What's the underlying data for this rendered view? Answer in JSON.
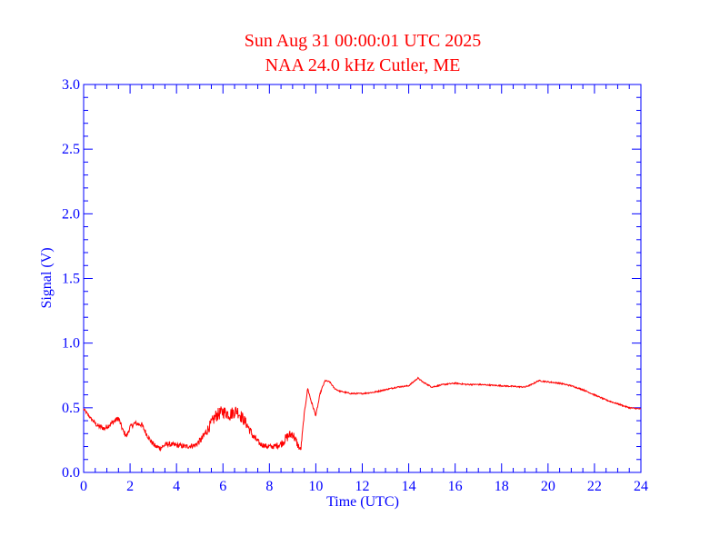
{
  "chart_data": {
    "type": "line",
    "title": "Sun Aug 31 00:00:01 UTC 2025",
    "subtitle": "NAA 24.0 kHz Cutler, ME",
    "xlabel": "Time (UTC)",
    "ylabel": "Signal (V)",
    "xlim": [
      0,
      24
    ],
    "ylim": [
      0,
      3.0
    ],
    "x_ticks": [
      0,
      2,
      4,
      6,
      8,
      10,
      12,
      14,
      16,
      18,
      20,
      22,
      24
    ],
    "x_tick_labels": [
      "0",
      "2",
      "4",
      "6",
      "8",
      "10",
      "12",
      "14",
      "16",
      "18",
      "20",
      "22",
      "24"
    ],
    "y_ticks": [
      0,
      0.5,
      1.0,
      1.5,
      2.0,
      2.5,
      3.0
    ],
    "y_tick_labels": [
      "0.0",
      "0.5",
      "1.0",
      "1.5",
      "2.0",
      "2.5",
      "3.0"
    ],
    "grid": false,
    "colors": {
      "title": "#ff0000",
      "axes": "#0000ff",
      "series": "#ff0000"
    },
    "series": [
      {
        "x": [
          0,
          0.3,
          0.6,
          0.9,
          1.2,
          1.5,
          1.7,
          1.85,
          2.0,
          2.2,
          2.5,
          2.7,
          2.9,
          3.1,
          3.3,
          3.6,
          4.0,
          4.4,
          4.8,
          5.1,
          5.4,
          5.7,
          6.0,
          6.3,
          6.6,
          6.8,
          7.0,
          7.3,
          7.6,
          7.9,
          8.2,
          8.5,
          8.8,
          9.0,
          9.2,
          9.35,
          9.5,
          9.65,
          9.8,
          10.0,
          10.2,
          10.4,
          10.6,
          10.8,
          11.0,
          11.5,
          12.0,
          12.5,
          13.0,
          13.5,
          14.0,
          14.2,
          14.4,
          14.6,
          15.0,
          15.5,
          16.0,
          16.5,
          17.0,
          18.0,
          19.0,
          19.3,
          19.6,
          20.0,
          20.5,
          21.0,
          21.5,
          22.0,
          22.5,
          23.0,
          23.5,
          24.0
        ],
        "y": [
          0.49,
          0.42,
          0.36,
          0.34,
          0.38,
          0.42,
          0.32,
          0.28,
          0.35,
          0.38,
          0.37,
          0.3,
          0.24,
          0.2,
          0.19,
          0.22,
          0.21,
          0.2,
          0.21,
          0.26,
          0.35,
          0.44,
          0.47,
          0.45,
          0.48,
          0.43,
          0.38,
          0.28,
          0.22,
          0.2,
          0.2,
          0.22,
          0.28,
          0.3,
          0.22,
          0.17,
          0.45,
          0.65,
          0.55,
          0.44,
          0.62,
          0.71,
          0.7,
          0.65,
          0.63,
          0.61,
          0.61,
          0.62,
          0.64,
          0.66,
          0.67,
          0.7,
          0.73,
          0.7,
          0.66,
          0.68,
          0.69,
          0.68,
          0.68,
          0.67,
          0.66,
          0.68,
          0.71,
          0.7,
          0.69,
          0.67,
          0.64,
          0.6,
          0.56,
          0.53,
          0.5,
          0.49
        ],
        "noise": [
          0.01,
          0.01,
          0.02,
          0.02,
          0.02,
          0.02,
          0.02,
          0.02,
          0.02,
          0.02,
          0.02,
          0.02,
          0.02,
          0.02,
          0.02,
          0.02,
          0.02,
          0.02,
          0.02,
          0.03,
          0.04,
          0.05,
          0.05,
          0.05,
          0.05,
          0.05,
          0.04,
          0.03,
          0.02,
          0.02,
          0.02,
          0.03,
          0.04,
          0.04,
          0.03,
          0.02,
          0.01,
          0.01,
          0.01,
          0.01,
          0.01,
          0.005,
          0.005,
          0.005,
          0.005,
          0.005,
          0.005,
          0.005,
          0.005,
          0.005,
          0.005,
          0.005,
          0.005,
          0.005,
          0.005,
          0.005,
          0.005,
          0.005,
          0.005,
          0.005,
          0.005,
          0.005,
          0.005,
          0.005,
          0.005,
          0.005,
          0.005,
          0.005,
          0.005,
          0.005,
          0.005,
          0.005
        ]
      }
    ]
  }
}
